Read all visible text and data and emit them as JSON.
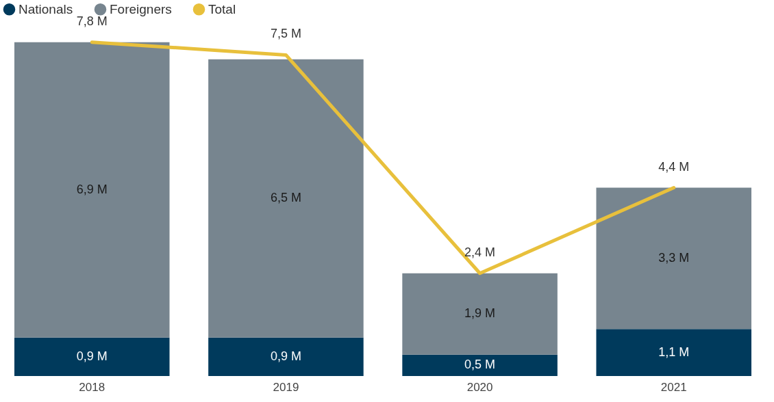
{
  "chart_data": {
    "type": "bar",
    "stacked": true,
    "legend": "top left",
    "tick_labels": "x",
    "categories": [
      "2018",
      "2019",
      "2020",
      "2021"
    ],
    "series": [
      {
        "name": "Nationals",
        "color": "#003a5c",
        "values": [
          0.9,
          0.9,
          0.5,
          1.1
        ],
        "value_labels": [
          "0,9 M",
          "0,9 M",
          "0,5 M",
          "1,1 M"
        ]
      },
      {
        "name": "Foreigners",
        "color": "#77858f",
        "values": [
          6.9,
          6.5,
          1.9,
          3.3
        ],
        "value_labels": [
          "6,9 M",
          "6,5 M",
          "1,9 M",
          "3,3 M"
        ]
      },
      {
        "name": "Total",
        "type": "line",
        "color": "#e8c03c",
        "line_style": "solid",
        "marker": "none",
        "values": [
          7.8,
          7.5,
          2.4,
          4.4
        ],
        "value_labels": [
          "7,8 M",
          "7,5 M",
          "2,4 M",
          "4,4 M"
        ]
      }
    ]
  }
}
